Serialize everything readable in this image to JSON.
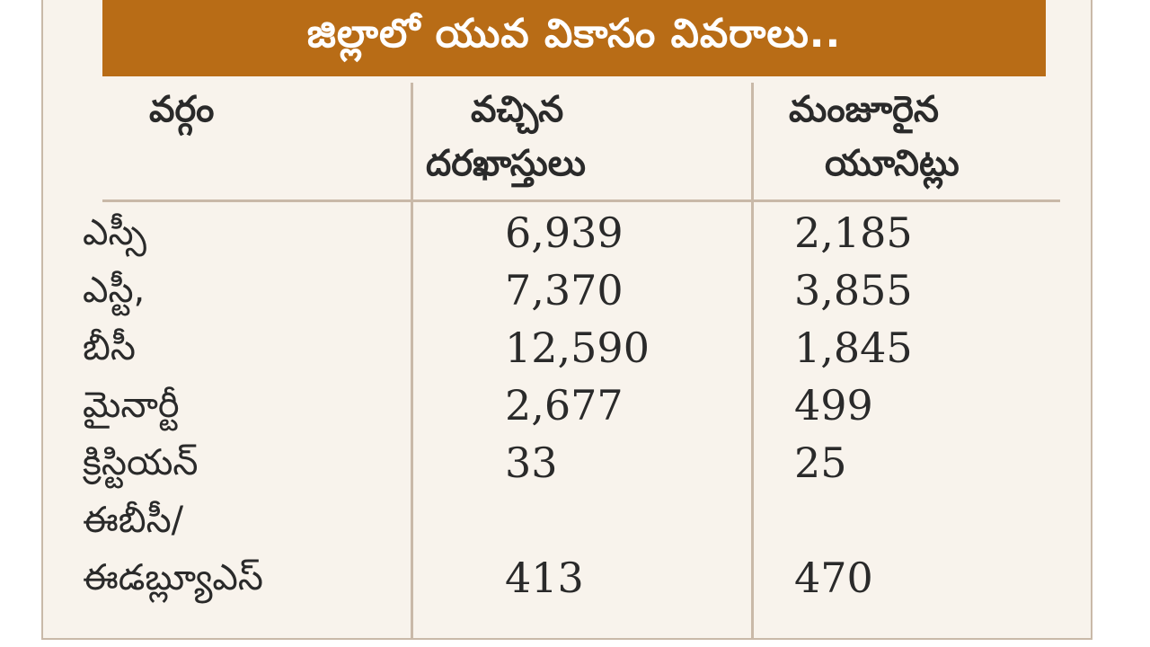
{
  "title": "జిల్లాలో యువ వికాసం వివరాలు..",
  "headers": {
    "category": "వర్గం",
    "applications_line1": "వచ్చిన",
    "applications_line2": "దరఖాస్తులు",
    "sanctioned_line1": "మంజూరైన",
    "sanctioned_line2": "యూనిట్లు"
  },
  "rows": [
    {
      "label": "ఎస్సీ",
      "applications": "6,939",
      "sanctioned": "2,185"
    },
    {
      "label": "ఎస్టీ,",
      "applications": "7,370",
      "sanctioned": "3,855"
    },
    {
      "label": "బీసీ",
      "applications": "12,590",
      "sanctioned": "1,845"
    },
    {
      "label": "మైనార్టీ",
      "applications": "2,677",
      "sanctioned": "499"
    },
    {
      "label": "క్రిస్టియన్",
      "applications": "33",
      "sanctioned": "25"
    },
    {
      "label": "ఈబీసీ/",
      "applications": "",
      "sanctioned": ""
    },
    {
      "label": "ఈడబ్ల్యూఎస్",
      "applications": "413",
      "sanctioned": "470"
    }
  ],
  "colors": {
    "title_bg": "#b86c16",
    "panel_bg": "#f8f3ec",
    "rule": "#c9b9a8"
  }
}
